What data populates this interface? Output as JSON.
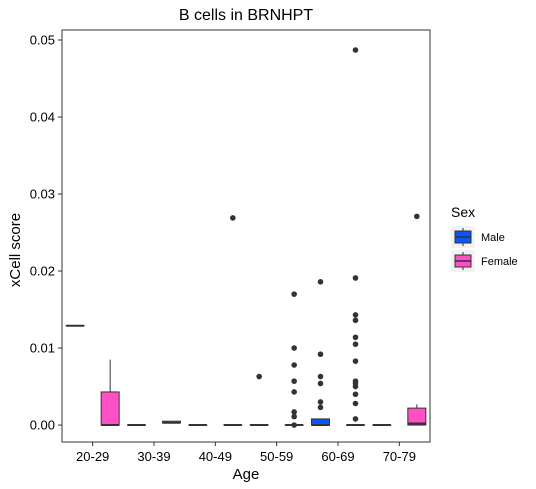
{
  "chart_data": {
    "type": "boxplot",
    "title": "B cells in BRNHPT",
    "xlabel": "Age",
    "ylabel": "xCell score",
    "ylim": [
      -0.0022,
      0.0513
    ],
    "yticks": [
      0.0,
      0.01,
      0.02,
      0.03,
      0.04,
      0.05
    ],
    "ytick_labels": [
      "0.00",
      "0.01",
      "0.02",
      "0.03",
      "0.04",
      "0.05"
    ],
    "categories": [
      "20-29",
      "30-39",
      "40-49",
      "50-59",
      "60-69",
      "70-79"
    ],
    "grid": false,
    "legend": {
      "title": "Sex",
      "placement": "right",
      "entries": [
        {
          "name": "Male",
          "color": "#0a55ff"
        },
        {
          "name": "Female",
          "color": "#ff4fc6"
        }
      ]
    },
    "series": [
      {
        "name": "Male",
        "color": "#0a55ff",
        "boxes": [
          {
            "category": "20-29",
            "min": 0.0129,
            "q1": 0.0129,
            "median": 0.0129,
            "q3": 0.0129,
            "max": 0.0129,
            "outliers": []
          },
          {
            "category": "30-39",
            "min": 0.0,
            "q1": 0.0,
            "median": 0.0,
            "q3": 0.0,
            "max": 0.0,
            "outliers": []
          },
          {
            "category": "40-49",
            "min": 0.0,
            "q1": 0.0,
            "median": 0.0,
            "q3": 0.0,
            "max": 0.0,
            "outliers": []
          },
          {
            "category": "50-59",
            "min": 0.0,
            "q1": 0.0,
            "median": 0.0,
            "q3": 0.0,
            "max": 0.0,
            "outliers": [
              0.0063
            ]
          },
          {
            "category": "60-69",
            "min": 0.0,
            "q1": 0.0,
            "median": 0.0,
            "q3": 0.0008,
            "max": 0.0008,
            "outliers": [
              0.0186,
              0.0092,
              0.0063,
              0.0054,
              0.003,
              0.0023
            ]
          },
          {
            "category": "70-79",
            "min": 0.0,
            "q1": 0.0,
            "median": 0.0,
            "q3": 0.0,
            "max": 0.0,
            "outliers": []
          }
        ]
      },
      {
        "name": "Female",
        "color": "#ff4fc6",
        "boxes": [
          {
            "category": "20-29",
            "min": 0.0,
            "q1": 0.0,
            "median": 0.0,
            "q3": 0.0043,
            "max": 0.0085,
            "outliers": []
          },
          {
            "category": "30-39",
            "min": 0.0003,
            "q1": 0.0003,
            "median": 0.0003,
            "q3": 0.0005,
            "max": 0.0005,
            "outliers": []
          },
          {
            "category": "40-49",
            "min": 0.0,
            "q1": 0.0,
            "median": 0.0,
            "q3": 0.0,
            "max": 0.0,
            "outliers": [
              0.0269
            ]
          },
          {
            "category": "50-59",
            "min": 0.0,
            "q1": 0.0,
            "median": 0.0,
            "q3": 0.0,
            "max": 0.0,
            "outliers": [
              0.017,
              0.01,
              0.0078,
              0.0057,
              0.0043,
              0.0017,
              0.0011,
              0.0
            ]
          },
          {
            "category": "60-69",
            "min": 0.0,
            "q1": 0.0,
            "median": 0.0,
            "q3": 0.0,
            "max": 0.0,
            "outliers": [
              0.0487,
              0.0191,
              0.0143,
              0.0136,
              0.0114,
              0.0105,
              0.0083,
              0.0057,
              0.0054,
              0.005,
              0.004,
              0.0028,
              0.0008
            ]
          },
          {
            "category": "70-79",
            "min": 0.0,
            "q1": 0.0,
            "median": 0.0002,
            "q3": 0.0022,
            "max": 0.0027,
            "outliers": [
              0.0271
            ]
          }
        ]
      }
    ]
  }
}
